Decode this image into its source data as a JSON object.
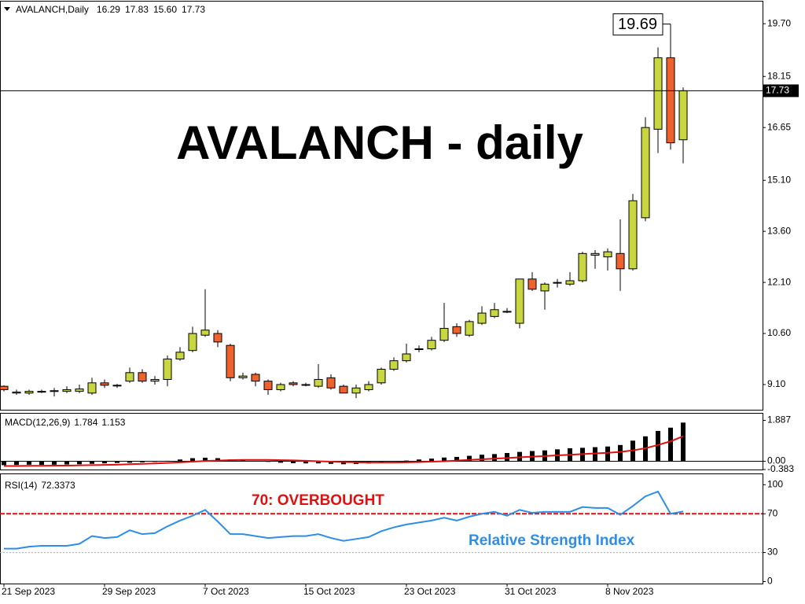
{
  "chart_data": [
    {
      "type": "candlestick",
      "symbol": "AVALANCH,Daily",
      "ohlc_labels": [
        "16.29",
        "17.83",
        "15.60",
        "17.73"
      ],
      "title": "AVALANCH - daily",
      "open": [
        9.05,
        8.85,
        8.85,
        8.9,
        8.9,
        8.9,
        8.9,
        8.85,
        9.15,
        9.08,
        9.2,
        9.45,
        9.2,
        9.25,
        9.85,
        10.1,
        10.55,
        10.6,
        10.25,
        9.3,
        9.4,
        9.2,
        8.95,
        9.15,
        9.1,
        9.05,
        9.3,
        9.05,
        8.85,
        8.95,
        9.15,
        9.55,
        9.8,
        10.15,
        10.15,
        10.4,
        10.8,
        10.55,
        10.9,
        11.1,
        11.25,
        10.9,
        12.2,
        11.85,
        12.1,
        12.05,
        12.15,
        12.9,
        12.85,
        12.95,
        12.5,
        14.0,
        16.6,
        18.7,
        16.29
      ],
      "high": [
        9.08,
        8.95,
        8.95,
        8.95,
        9.0,
        9.05,
        9.1,
        9.3,
        9.25,
        9.12,
        9.6,
        9.55,
        9.35,
        9.95,
        10.2,
        10.8,
        11.9,
        10.7,
        10.3,
        9.45,
        9.45,
        9.25,
        9.15,
        9.2,
        9.15,
        9.7,
        9.4,
        9.1,
        9.1,
        9.2,
        9.6,
        9.9,
        10.3,
        10.25,
        10.5,
        11.5,
        10.9,
        11.0,
        11.4,
        11.5,
        11.35,
        12.2,
        12.4,
        12.1,
        12.2,
        12.4,
        13.0,
        13.05,
        13.1,
        13.95,
        14.7,
        16.95,
        19.0,
        19.69,
        17.83
      ],
      "low": [
        8.9,
        8.8,
        8.8,
        8.85,
        8.75,
        8.85,
        8.85,
        8.8,
        9.0,
        9.0,
        9.15,
        9.15,
        9.1,
        9.05,
        9.8,
        10.05,
        10.5,
        10.2,
        9.2,
        9.25,
        9.05,
        8.8,
        8.9,
        9.05,
        9.05,
        9.0,
        8.95,
        8.85,
        8.7,
        8.9,
        9.1,
        9.5,
        9.75,
        10.05,
        10.1,
        10.35,
        10.5,
        10.5,
        10.85,
        11.05,
        11.2,
        10.75,
        11.85,
        11.3,
        11.95,
        12.0,
        12.1,
        12.5,
        12.45,
        11.85,
        12.45,
        13.9,
        15.9,
        16.0,
        15.6
      ],
      "close": [
        8.95,
        8.88,
        8.9,
        8.9,
        8.92,
        8.95,
        8.97,
        9.15,
        9.08,
        9.08,
        9.45,
        9.2,
        9.25,
        9.85,
        10.05,
        10.6,
        10.7,
        10.35,
        9.3,
        9.35,
        9.2,
        8.95,
        9.1,
        9.1,
        9.1,
        9.25,
        9.0,
        8.85,
        9.0,
        9.1,
        9.55,
        9.8,
        10.0,
        10.15,
        10.4,
        10.75,
        10.6,
        10.95,
        11.2,
        11.3,
        11.25,
        12.2,
        11.9,
        12.05,
        12.1,
        12.15,
        12.95,
        12.95,
        13.0,
        12.5,
        14.5,
        16.65,
        18.7,
        16.2,
        17.73
      ],
      "up_color": "#c8d640",
      "down_color": "#f0622d",
      "ylim": [
        8.36,
        20.35
      ],
      "yticks": [
        {
          "value": 9.1,
          "label": "9.10"
        },
        {
          "value": 10.6,
          "label": "10.60"
        },
        {
          "value": 12.1,
          "label": "12.10"
        },
        {
          "value": 13.6,
          "label": "13.60"
        },
        {
          "value": 15.1,
          "label": "15.10"
        },
        {
          "value": 16.65,
          "label": "16.65"
        },
        {
          "value": 18.15,
          "label": "18.15"
        },
        {
          "value": 19.7,
          "label": "19.70"
        }
      ]
    },
    {
      "type": "macd",
      "title": "MACD(12,26,9)",
      "series": [
        {
          "values": [
            -0.18,
            -0.17,
            -0.16,
            -0.17,
            -0.16,
            -0.15,
            -0.14,
            -0.12,
            -0.1,
            -0.08,
            -0.07,
            -0.05,
            -0.03,
            0.02,
            0.08,
            0.14,
            0.16,
            0.14,
            0.08,
            0.04,
            0,
            -0.03,
            -0.07,
            -0.09,
            -0.1,
            -0.1,
            -0.12,
            -0.14,
            -0.13,
            -0.1,
            -0.08,
            -0.02,
            0.03,
            0.08,
            0.12,
            0.17,
            0.2,
            0.25,
            0.3,
            0.33,
            0.38,
            0.43,
            0.47,
            0.5,
            0.55,
            0.6,
            0.62,
            0.65,
            0.68,
            0.75,
            0.95,
            1.15,
            1.4,
            1.55,
            1.784
          ],
          "color": "#000000"
        },
        {
          "values": [
            -0.22,
            -0.22,
            -0.21,
            -0.21,
            -0.2,
            -0.2,
            -0.19,
            -0.18,
            -0.17,
            -0.16,
            -0.14,
            -0.12,
            -0.1,
            -0.08,
            -0.05,
            -0.02,
            0.01,
            0.03,
            0.05,
            0.06,
            0.06,
            0.06,
            0.05,
            0.04,
            0.02,
            0,
            -0.02,
            -0.04,
            -0.05,
            -0.06,
            -0.06,
            -0.06,
            -0.05,
            -0.04,
            -0.02,
            0,
            0.03,
            0.06,
            0.09,
            0.12,
            0.15,
            0.18,
            0.21,
            0.24,
            0.27,
            0.3,
            0.33,
            0.36,
            0.39,
            0.43,
            0.5,
            0.6,
            0.75,
            0.92,
            1.153
          ],
          "color": "#e01010"
        }
      ],
      "ylim": [
        -0.383,
        2.16
      ],
      "yticks": [
        {
          "value": -0.383,
          "label": "-0.383"
        },
        {
          "value": 0,
          "label": "0.00"
        },
        1.887
      ]
    },
    {
      "type": "line",
      "title": "RSI(14)",
      "categories": [
        "21 Sep 2023",
        null,
        null,
        null,
        null,
        null,
        null,
        null,
        "29 Sep 2023",
        null,
        null,
        null,
        null,
        null,
        null,
        null,
        "7 Oct 2023",
        null,
        null,
        null,
        null,
        null,
        null,
        null,
        "15 Oct 2023",
        null,
        null,
        null,
        null,
        null,
        null,
        null,
        "23 Oct 2023",
        null,
        null,
        null,
        null,
        null,
        null,
        null,
        "31 Oct 2023",
        null,
        null,
        null,
        null,
        null,
        null,
        null,
        "8 Nov 2023",
        null,
        null,
        null,
        null,
        null,
        null
      ],
      "series": [
        {
          "values": [
            34,
            34,
            36,
            37,
            37,
            37,
            39,
            47,
            45,
            46,
            53,
            49,
            50,
            57,
            63,
            68,
            74,
            62,
            49,
            49,
            47,
            45,
            46,
            47,
            47,
            49,
            45,
            42,
            44,
            46,
            52,
            56,
            59,
            61,
            63,
            66,
            63,
            67,
            70,
            72,
            68,
            74,
            71,
            72,
            72,
            72,
            77,
            76,
            76,
            69,
            78,
            88,
            93,
            70,
            72.3373
          ],
          "color": "#2e8ee6"
        }
      ],
      "ylim": [
        -2,
        110
      ],
      "yticks": [
        0,
        30,
        70,
        100
      ],
      "level": 70,
      "level_color": "#e01010",
      "dotted_level": 30,
      "annotations": [
        "70: OVERBOUGHT",
        "Relative Strength Index"
      ]
    }
  ]
}
